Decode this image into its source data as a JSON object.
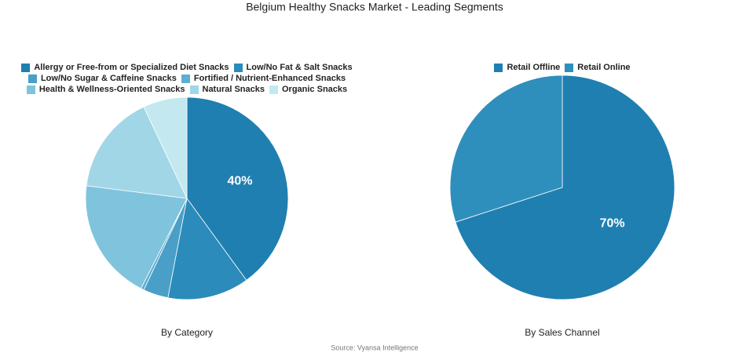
{
  "title": "Belgium Healthy Snacks Market - Leading Segments",
  "source": "Source: Vyansa Intelligence",
  "chart_data": [
    {
      "type": "pie",
      "subtitle": "By Category",
      "categories": [
        "Allergy or Free-from or Specialized Diet Snacks",
        "Low/No Fat & Salt Snacks",
        "Low/No Sugar & Caffeine Snacks",
        "Fortified / Nutrient-Enhanced Snacks",
        "Health & Wellness-Oriented Snacks",
        "Natural Snacks",
        "Organic Snacks"
      ],
      "values": [
        40,
        13,
        4,
        0.5,
        19.5,
        16,
        7
      ],
      "value_labels": [
        "40%",
        null,
        null,
        null,
        null,
        null,
        null
      ],
      "colors": [
        "#1f7fb0",
        "#2b8bba",
        "#4a9fc8",
        "#5eaed2",
        "#7fc4dc",
        "#a1d6e6",
        "#c4e8f0"
      ]
    },
    {
      "type": "pie",
      "subtitle": "By Sales Channel",
      "categories": [
        "Retail Offline",
        "Retail Online"
      ],
      "values": [
        70,
        30
      ],
      "value_labels": [
        "70%",
        null
      ],
      "colors": [
        "#1f7fb0",
        "#2f8fbc"
      ]
    }
  ]
}
